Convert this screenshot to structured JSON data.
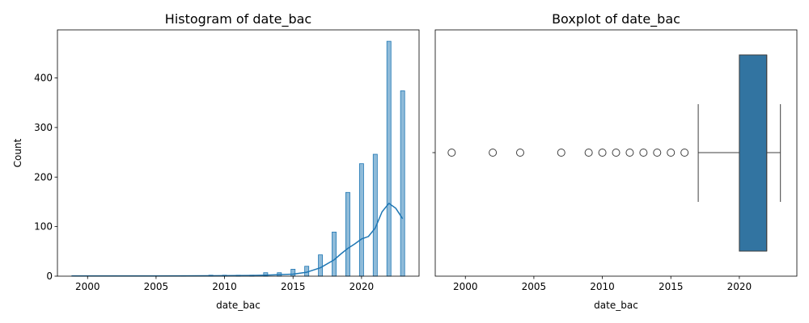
{
  "chart_data": [
    {
      "type": "bar",
      "title": "Histogram of date_bac",
      "xlabel": "date_bac",
      "ylabel": "Count",
      "xlim": [
        1997.8,
        2024.2
      ],
      "ylim": [
        0,
        497
      ],
      "xticks": [
        2000,
        2005,
        2010,
        2015,
        2020
      ],
      "yticks": [
        0,
        100,
        200,
        300,
        400
      ],
      "grid": false,
      "bin_width": 0.3,
      "bins": [
        {
          "x": 1999,
          "count": 1
        },
        {
          "x": 2002,
          "count": 1
        },
        {
          "x": 2004,
          "count": 1
        },
        {
          "x": 2007,
          "count": 1
        },
        {
          "x": 2009,
          "count": 2
        },
        {
          "x": 2010,
          "count": 2
        },
        {
          "x": 2011,
          "count": 2
        },
        {
          "x": 2012,
          "count": 2
        },
        {
          "x": 2013,
          "count": 7
        },
        {
          "x": 2014,
          "count": 7
        },
        {
          "x": 2015,
          "count": 14
        },
        {
          "x": 2016,
          "count": 20
        },
        {
          "x": 2017,
          "count": 43
        },
        {
          "x": 2018,
          "count": 89
        },
        {
          "x": 2019,
          "count": 169
        },
        {
          "x": 2020,
          "count": 227
        },
        {
          "x": 2021,
          "count": 246
        },
        {
          "x": 2022,
          "count": 474
        },
        {
          "x": 2023,
          "count": 374
        }
      ],
      "kde": {
        "x": [
          1999,
          2001,
          2003,
          2005,
          2007,
          2009,
          2010,
          2011,
          2012,
          2013,
          2014,
          2015,
          2016,
          2017,
          2018,
          2018.5,
          2019,
          2019.5,
          2020,
          2020.5,
          2021,
          2021.5,
          2022,
          2022.5,
          2023
        ],
        "y": [
          0.5,
          0.5,
          0.5,
          0.5,
          0.6,
          0.8,
          1,
          1.2,
          1.5,
          2,
          3,
          4,
          8,
          17,
          33,
          45,
          56,
          65,
          75,
          80,
          97,
          130,
          147,
          137,
          116
        ]
      }
    },
    {
      "type": "box",
      "title": "Boxplot of date_bac",
      "xlabel": "date_bac",
      "xlim": [
        1997.8,
        2024.2
      ],
      "xticks": [
        2000,
        2005,
        2010,
        2015,
        2020
      ],
      "grid": false,
      "whisker_low": 2017,
      "q1": 2020,
      "median": 2022,
      "q3": 2022,
      "whisker_high": 2023,
      "outliers": [
        1999,
        2002,
        2004,
        2007,
        2009,
        2010,
        2011,
        2012,
        2013,
        2014,
        2015,
        2016
      ],
      "box_color": "#3274a1"
    }
  ]
}
